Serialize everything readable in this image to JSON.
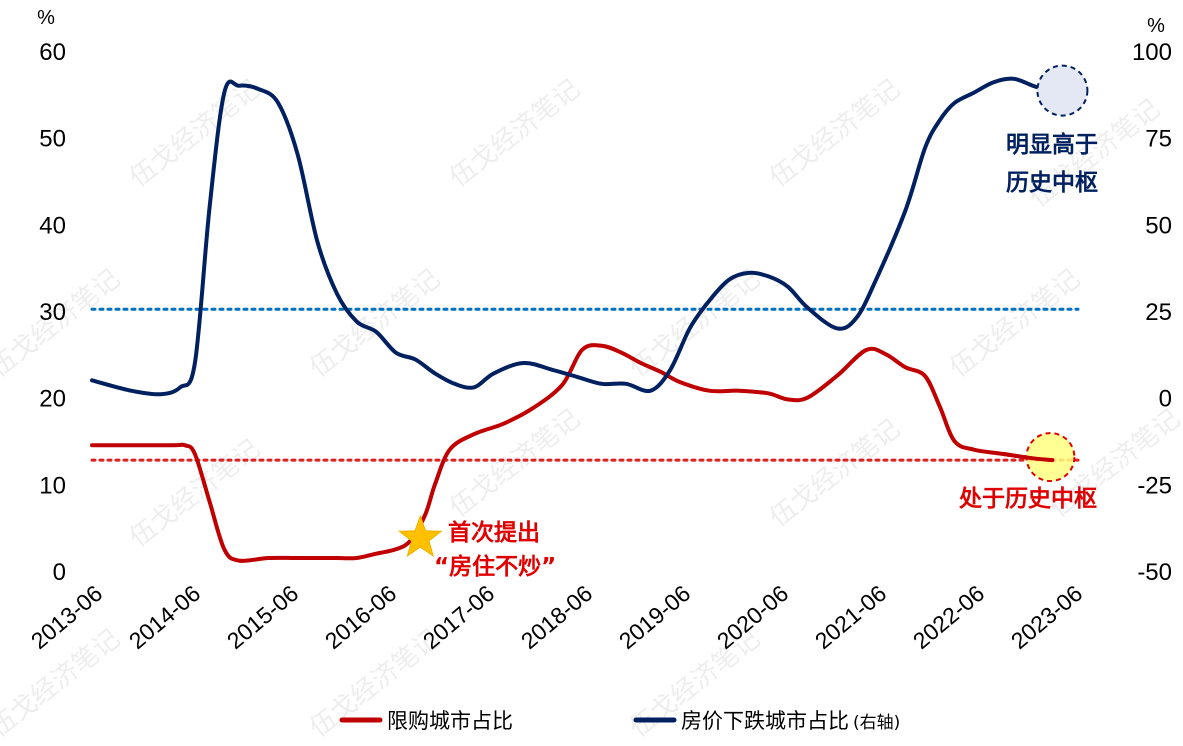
{
  "chart_data": {
    "type": "line",
    "left_axis": {
      "unit": "%",
      "ticks": [
        0,
        10,
        20,
        30,
        40,
        50,
        60
      ],
      "ylim": [
        0,
        60
      ]
    },
    "right_axis": {
      "unit": "%",
      "ticks": [
        -50,
        -25,
        0,
        25,
        50,
        75,
        100
      ],
      "ylim": [
        -50,
        100
      ]
    },
    "x_ticks": [
      "2013-06",
      "2014-06",
      "2015-06",
      "2016-06",
      "2017-06",
      "2018-06",
      "2019-06",
      "2020-06",
      "2021-06",
      "2022-06",
      "2023-06"
    ],
    "x_range": [
      2013.5,
      2023.5
    ],
    "series": [
      {
        "name": "限购城市占比",
        "axis": "left",
        "color": "#C00000",
        "x": [
          2013.5,
          2014.3,
          2014.45,
          2014.55,
          2014.7,
          2014.85,
          2015.0,
          2015.3,
          2015.6,
          2016.0,
          2016.2,
          2016.4,
          2016.6,
          2016.75,
          2016.9,
          2017.0,
          2017.15,
          2017.4,
          2017.7,
          2018.0,
          2018.3,
          2018.5,
          2018.7,
          2018.9,
          2019.1,
          2019.3,
          2019.5,
          2019.8,
          2020.1,
          2020.4,
          2020.6,
          2020.8,
          2021.1,
          2021.4,
          2021.6,
          2021.8,
          2022.0,
          2022.15,
          2022.3,
          2022.5,
          2022.8,
          2023.1,
          2023.3
        ],
        "values": [
          14.5,
          14.5,
          14.5,
          13.5,
          8.0,
          2.5,
          1.2,
          1.5,
          1.5,
          1.5,
          1.5,
          2.0,
          2.5,
          3.5,
          6.5,
          10.0,
          14.0,
          15.8,
          17.0,
          18.8,
          21.5,
          25.5,
          26.0,
          25.2,
          24.0,
          23.0,
          21.8,
          20.8,
          20.8,
          20.5,
          19.8,
          20.0,
          22.5,
          25.5,
          25.0,
          23.5,
          22.5,
          19.0,
          15.0,
          14.0,
          13.5,
          13.0,
          12.8
        ]
      },
      {
        "name": "房价下跌城市占比(右轴)",
        "axis": "right",
        "color": "#002060",
        "x": [
          2013.5,
          2013.9,
          2014.2,
          2014.4,
          2014.55,
          2014.7,
          2014.85,
          2015.0,
          2015.2,
          2015.4,
          2015.6,
          2015.8,
          2016.0,
          2016.2,
          2016.4,
          2016.6,
          2016.8,
          2017.0,
          2017.2,
          2017.4,
          2017.6,
          2017.9,
          2018.2,
          2018.45,
          2018.7,
          2018.95,
          2019.2,
          2019.4,
          2019.6,
          2019.8,
          2020.0,
          2020.2,
          2020.4,
          2020.6,
          2020.8,
          2021.1,
          2021.3,
          2021.5,
          2021.8,
          2022.0,
          2022.15,
          2022.3,
          2022.5,
          2022.7,
          2022.9,
          2023.1,
          2023.3
        ],
        "values": [
          5,
          2,
          1,
          3,
          10,
          55,
          88,
          90,
          89,
          85,
          70,
          45,
          30,
          22,
          19,
          13,
          11,
          7,
          4,
          3,
          7,
          10,
          8,
          6,
          4,
          4,
          2,
          8,
          20,
          28,
          34,
          36,
          35,
          32,
          26,
          20,
          23,
          34,
          54,
          72,
          80,
          85,
          88,
          91,
          92,
          90,
          88
        ]
      }
    ],
    "reference_lines": [
      {
        "axis": "left",
        "value": 30.2,
        "color": "#0070C0"
      },
      {
        "axis": "left",
        "value": 12.8,
        "color": "#E02020"
      }
    ],
    "annotations": [
      {
        "text_lines": [
          "明显高于",
          "历史中枢"
        ],
        "color": "#002060"
      },
      {
        "text_lines": [
          "处于历史中枢"
        ],
        "color": "#E00000"
      },
      {
        "text_lines": [
          "首次提出",
          "“房住不炒”"
        ],
        "color": "#E00000"
      }
    ],
    "legend": {
      "placement": "bottom",
      "items": [
        {
          "label": "限购城市占比",
          "color": "#C00000"
        },
        {
          "label": "房价下跌城市占比",
          "suffix": "(右轴)",
          "color": "#002060"
        }
      ]
    },
    "watermark": "伍戈经济笔记"
  }
}
